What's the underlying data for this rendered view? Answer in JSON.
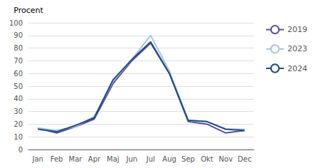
{
  "chart_data": {
    "type": "line",
    "ylabel": "Procent",
    "categories": [
      "Jan",
      "Feb",
      "Mar",
      "Apr",
      "Maj",
      "Jun",
      "Jul",
      "Aug",
      "Sep",
      "Okt",
      "Nov",
      "Dec"
    ],
    "series": [
      {
        "name": "2019",
        "color": "#5b4ea0",
        "values": [
          17,
          13,
          18,
          24,
          52,
          70,
          84,
          60,
          22,
          20,
          13,
          15
        ]
      },
      {
        "name": "2023",
        "color": "#a8c4e0",
        "values": [
          17,
          15,
          18,
          26,
          54,
          71,
          90,
          62,
          23,
          22,
          16,
          16
        ]
      },
      {
        "name": "2024",
        "color": "#1f4e79",
        "values": [
          16,
          14,
          19,
          25,
          55,
          71,
          85,
          60,
          23,
          22,
          16,
          15
        ]
      }
    ],
    "ylim": [
      0,
      100
    ],
    "yticks": [
      0,
      10,
      20,
      30,
      40,
      50,
      60,
      70,
      80,
      90,
      100
    ],
    "grid": true,
    "legend": "right"
  }
}
